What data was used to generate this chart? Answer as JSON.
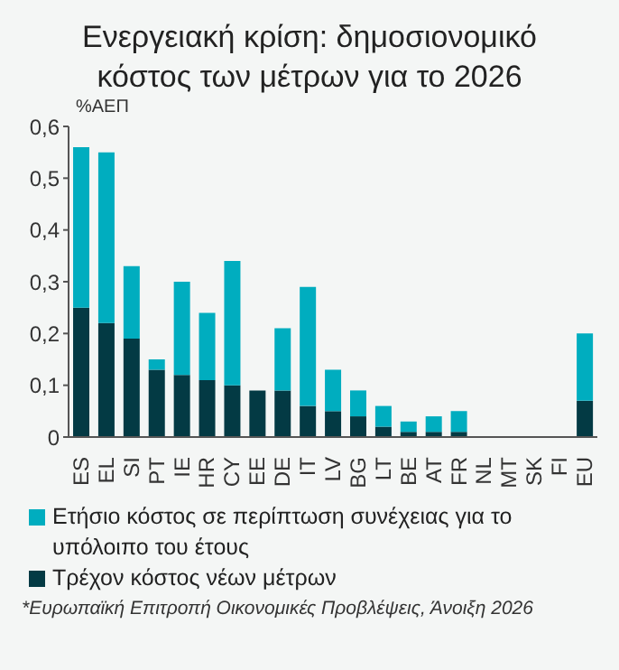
{
  "chart_data": {
    "type": "bar",
    "title": "Ενεργειακή κρίση: δημοσιονομικό κόστος των μέτρων για το 2026",
    "categories": [
      "ES",
      "EL",
      "SI",
      "PT",
      "IE",
      "HR",
      "CY",
      "EE",
      "DE",
      "IT",
      "LV",
      "BG",
      "LT",
      "BE",
      "AT",
      "FR",
      "NL",
      "MT",
      "SK",
      "FI",
      "EU"
    ],
    "stacked": true,
    "series": [
      {
        "name": "Τρέχον κόστος νέων μέτρων",
        "color": "#033a44",
        "values": [
          0.25,
          0.22,
          0.19,
          0.13,
          0.12,
          0.11,
          0.1,
          0.09,
          0.09,
          0.06,
          0.05,
          0.04,
          0.02,
          0.01,
          0.01,
          0.01,
          0,
          0,
          0,
          0,
          0.07
        ]
      },
      {
        "name": "Ετήσιο κόστος σε περίπτωση συνέχειας για το υπόλοιπο του έτους",
        "color": "#00adbf",
        "values": [
          0.31,
          0.33,
          0.14,
          0.02,
          0.18,
          0.13,
          0.24,
          0,
          0.12,
          0.23,
          0.08,
          0.05,
          0.04,
          0.02,
          0.03,
          0.04,
          0,
          0,
          0,
          0,
          0.13
        ]
      }
    ],
    "ylim": [
      0,
      0.6
    ],
    "yticks": [
      0,
      {
        "value": 0.1,
        "label": "0,1"
      },
      {
        "value": 0.2,
        "label": "0,2"
      },
      {
        "value": 0.3,
        "label": "0,3"
      },
      {
        "value": 0.4,
        "label": "0,4"
      },
      {
        "value": 0.5,
        "label": "0,5"
      },
      {
        "value": 0.6,
        "label": "0,6"
      }
    ],
    "ylabel": "%ΑΕΠ",
    "grid": false,
    "legend": "bottom",
    "annotations": [
      "*Ευρωπαϊκή Επιτροπή Οικονομικές Προβλέψεις, Άνοιξη 2026"
    ]
  }
}
